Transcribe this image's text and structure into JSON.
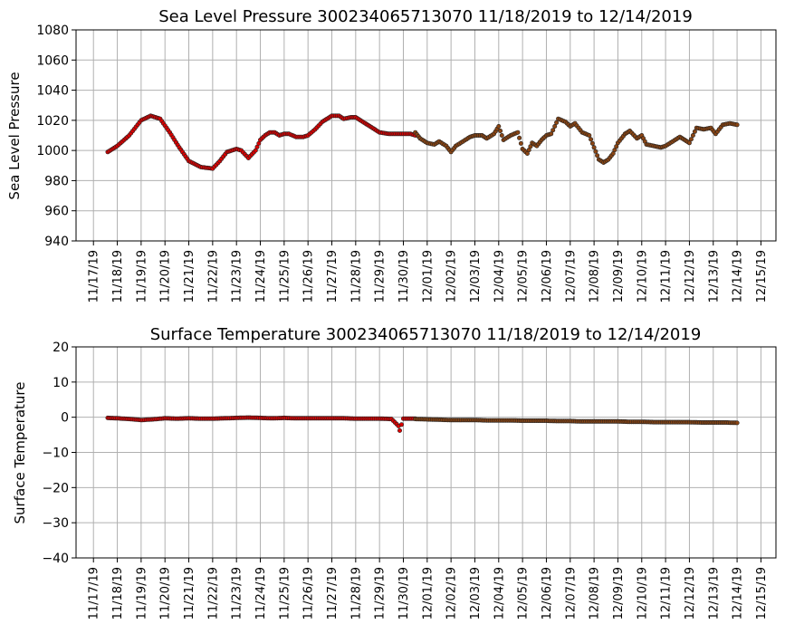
{
  "chart_data": [
    {
      "type": "scatter",
      "title": "Sea Level Pressure 300234065713070  11/18/2019 to 12/14/2019",
      "ylabel": "Sea Level Pressure",
      "xlabel": "",
      "ylim": [
        940,
        1080
      ],
      "yticks": [
        940,
        960,
        980,
        1000,
        1020,
        1040,
        1060,
        1080
      ],
      "xticks": [
        "11/17/19",
        "11/18/19",
        "11/19/19",
        "11/20/19",
        "11/21/19",
        "11/22/19",
        "11/23/19",
        "11/24/19",
        "11/25/19",
        "11/26/19",
        "11/27/19",
        "11/28/19",
        "11/29/19",
        "11/30/19",
        "12/01/19",
        "12/02/19",
        "12/03/19",
        "12/04/19",
        "12/05/19",
        "12/06/19",
        "12/07/19",
        "12/08/19",
        "12/09/19",
        "12/10/19",
        "12/11/19",
        "12/12/19",
        "12/13/19",
        "12/14/19",
        "12/15/19"
      ],
      "grid": true,
      "colors": {
        "red": "#dd0000",
        "brown": "#8b4513",
        "edge": "#222222"
      },
      "series": [
        {
          "color": "red",
          "x": [
            0.6,
            1.0,
            1.5,
            2.0,
            2.4,
            2.8,
            3.2,
            3.6,
            4.0,
            4.5,
            5.0,
            5.3,
            5.6,
            6.0,
            6.2,
            6.5,
            6.8,
            7.0,
            7.2,
            7.4,
            7.6,
            7.8,
            8.0,
            8.2,
            8.5,
            8.8,
            9.0,
            9.3,
            9.6,
            10.0,
            10.3,
            10.5,
            10.8,
            11.0,
            11.4,
            11.8,
            12.0,
            12.4,
            12.8,
            13.0,
            13.3,
            13.5
          ],
          "y": [
            999,
            1003,
            1010,
            1020,
            1023,
            1021,
            1012,
            1002,
            993,
            989,
            988,
            993,
            999,
            1001,
            1000,
            995,
            1000,
            1007,
            1010,
            1012,
            1012,
            1010,
            1011,
            1011,
            1009,
            1009,
            1010,
            1014,
            1019,
            1023,
            1023,
            1021,
            1022,
            1022,
            1018,
            1014,
            1012,
            1011,
            1011,
            1011,
            1011,
            1010
          ]
        },
        {
          "color": "brown",
          "x": [
            13.5,
            13.7,
            14.0,
            14.3,
            14.5,
            14.8,
            15.0,
            15.2,
            15.5,
            15.8,
            16.0,
            16.3,
            16.5,
            16.8,
            17.0,
            17.2,
            17.5,
            17.8,
            18.0,
            18.2,
            18.4,
            18.6,
            18.8,
            19.0,
            19.2,
            19.5,
            19.8,
            20.0,
            20.2,
            20.5,
            20.8,
            21.0,
            21.2,
            21.4,
            21.6,
            21.8,
            22.0,
            22.3,
            22.5,
            22.8,
            23.0,
            23.2,
            23.5,
            23.8,
            24.0,
            24.3,
            24.6,
            25.0,
            25.3,
            25.6,
            25.9,
            26.1,
            26.4,
            26.7,
            27.0
          ],
          "y": [
            1012,
            1008,
            1005,
            1004,
            1006,
            1003,
            999,
            1003,
            1006,
            1009,
            1010,
            1010,
            1008,
            1011,
            1016,
            1007,
            1010,
            1012,
            1001,
            998,
            1005,
            1003,
            1007,
            1010,
            1011,
            1021,
            1019,
            1016,
            1018,
            1012,
            1010,
            1002,
            994,
            992,
            994,
            998,
            1005,
            1011,
            1013,
            1008,
            1010,
            1004,
            1003,
            1002,
            1003,
            1006,
            1009,
            1005,
            1015,
            1014,
            1015,
            1011,
            1017,
            1018,
            1017
          ]
        }
      ]
    },
    {
      "type": "scatter",
      "title": "Surface Temperature 300234065713070  11/18/2019 to 12/14/2019",
      "ylabel": "Surface Temperature",
      "xlabel": "",
      "ylim": [
        -40,
        20
      ],
      "yticks": [
        -40,
        -30,
        -20,
        -10,
        0,
        10,
        20
      ],
      "xticks": [
        "11/17/19",
        "11/18/19",
        "11/19/19",
        "11/20/19",
        "11/21/19",
        "11/22/19",
        "11/23/19",
        "11/24/19",
        "11/25/19",
        "11/26/19",
        "11/27/19",
        "11/28/19",
        "11/29/19",
        "11/30/19",
        "12/01/19",
        "12/02/19",
        "12/03/19",
        "12/04/19",
        "12/05/19",
        "12/06/19",
        "12/07/19",
        "12/08/19",
        "12/09/19",
        "12/10/19",
        "12/11/19",
        "12/12/19",
        "12/13/19",
        "12/14/19",
        "12/15/19"
      ],
      "grid": true,
      "colors": {
        "red": "#dd0000",
        "brown": "#8b4513",
        "edge": "#222222"
      },
      "series": [
        {
          "color": "red",
          "x": [
            0.6,
            1.0,
            1.5,
            2.0,
            2.5,
            3.0,
            3.5,
            4.0,
            4.5,
            5.0,
            5.5,
            6.0,
            6.5,
            7.0,
            7.5,
            8.0,
            8.5,
            9.0,
            9.5,
            10.0,
            10.5,
            11.0,
            11.5,
            12.0,
            12.5,
            12.8,
            12.85,
            13.0,
            13.5
          ],
          "y": [
            -0.2,
            -0.3,
            -0.5,
            -0.8,
            -0.6,
            -0.3,
            -0.4,
            -0.3,
            -0.4,
            -0.4,
            -0.3,
            -0.2,
            -0.1,
            -0.2,
            -0.3,
            -0.2,
            -0.3,
            -0.3,
            -0.3,
            -0.3,
            -0.3,
            -0.4,
            -0.4,
            -0.4,
            -0.5,
            -2.5,
            -3.8,
            -0.4,
            -0.4
          ]
        },
        {
          "color": "brown",
          "x": [
            13.5,
            14.0,
            14.5,
            15.0,
            15.5,
            16.0,
            16.5,
            17.0,
            17.5,
            18.0,
            18.5,
            19.0,
            19.5,
            20.0,
            20.5,
            21.0,
            21.5,
            22.0,
            22.5,
            23.0,
            23.5,
            24.0,
            24.5,
            25.0,
            25.5,
            26.0,
            26.5,
            27.0
          ],
          "y": [
            -0.5,
            -0.6,
            -0.7,
            -0.8,
            -0.8,
            -0.8,
            -0.9,
            -0.9,
            -0.9,
            -1.0,
            -1.0,
            -1.0,
            -1.1,
            -1.1,
            -1.2,
            -1.2,
            -1.2,
            -1.2,
            -1.3,
            -1.3,
            -1.4,
            -1.4,
            -1.4,
            -1.4,
            -1.5,
            -1.5,
            -1.5,
            -1.6
          ]
        }
      ]
    }
  ]
}
